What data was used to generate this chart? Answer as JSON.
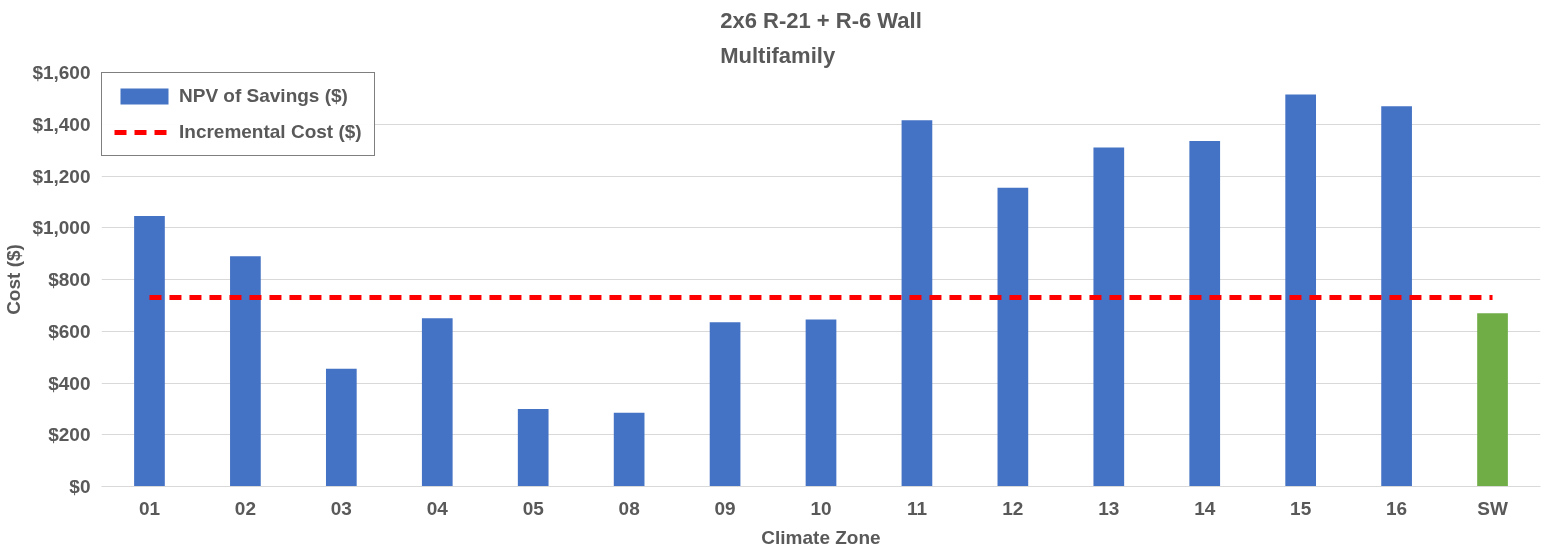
{
  "chart_data": {
    "type": "bar",
    "title": "2x6 R-21 + R-6 Wall\nMultifamily",
    "xlabel": "Climate Zone",
    "ylabel": "Cost ($)",
    "categories": [
      "01",
      "02",
      "03",
      "04",
      "05",
      "08",
      "09",
      "10",
      "11",
      "12",
      "13",
      "14",
      "15",
      "16",
      "SW"
    ],
    "series": [
      {
        "name": "NPV of Savings ($)",
        "color": "#4472c4",
        "colors": [
          null,
          null,
          null,
          null,
          null,
          null,
          null,
          null,
          null,
          null,
          null,
          null,
          null,
          null,
          "#70ad47"
        ],
        "values": [
          1045,
          890,
          455,
          650,
          300,
          285,
          635,
          645,
          1415,
          1155,
          1310,
          1335,
          1515,
          1470,
          670
        ]
      }
    ],
    "ref_lines": [
      {
        "axis": "y",
        "value": 730,
        "label": "Incremental Cost ($)",
        "color": "#ff0000",
        "line_style": "dashed"
      }
    ],
    "ylim": [
      0,
      1600
    ],
    "yticks": [
      {
        "value": 0,
        "label": "$0"
      },
      {
        "value": 200,
        "label": "$200"
      },
      {
        "value": 400,
        "label": "$400"
      },
      {
        "value": 600,
        "label": "$600"
      },
      {
        "value": 800,
        "label": "$800"
      },
      {
        "value": 1000,
        "label": "$1,000"
      },
      {
        "value": 1200,
        "label": "$1,200"
      },
      {
        "value": 1400,
        "label": "$1,400"
      },
      {
        "value": 1600,
        "label": "$1,600"
      }
    ],
    "grid": "y",
    "legend": "top left"
  }
}
